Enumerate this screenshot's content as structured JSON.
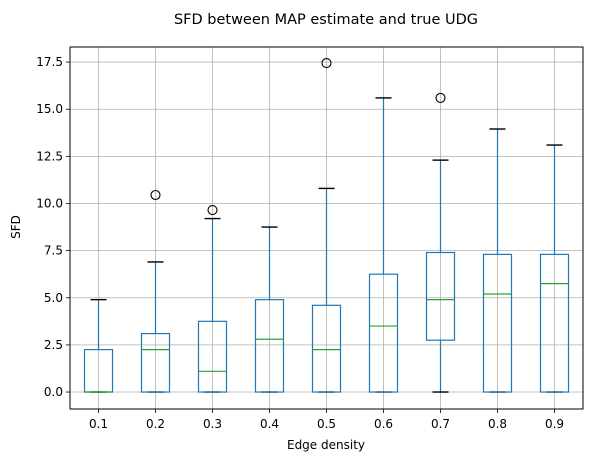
{
  "chart_data": {
    "type": "box",
    "title": "SFD between MAP estimate and true UDG",
    "xlabel": "Edge density",
    "ylabel": "SFD",
    "ylim": [
      -0.9,
      18.3
    ],
    "yticks": [
      0.0,
      2.5,
      5.0,
      7.5,
      10.0,
      12.5,
      15.0,
      17.5
    ],
    "ytick_labels": [
      "0.0",
      "2.5",
      "5.0",
      "7.5",
      "10.0",
      "12.5",
      "15.0",
      "17.5"
    ],
    "categories": [
      "0.1",
      "0.2",
      "0.3",
      "0.4",
      "0.5",
      "0.6",
      "0.7",
      "0.8",
      "0.9"
    ],
    "grid": true,
    "boxes": [
      {
        "category": "0.1",
        "whisker_low": 0.0,
        "q1": 0.0,
        "median": 0.0,
        "q3": 2.25,
        "whisker_high": 4.9,
        "outliers": []
      },
      {
        "category": "0.2",
        "whisker_low": 0.0,
        "q1": 0.0,
        "median": 2.25,
        "q3": 3.1,
        "whisker_high": 6.9,
        "outliers": [
          10.45
        ]
      },
      {
        "category": "0.3",
        "whisker_low": 0.0,
        "q1": 0.0,
        "median": 1.1,
        "q3": 3.75,
        "whisker_high": 9.2,
        "outliers": [
          9.65
        ]
      },
      {
        "category": "0.4",
        "whisker_low": 0.0,
        "q1": 0.0,
        "median": 2.8,
        "q3": 4.9,
        "whisker_high": 8.75,
        "outliers": []
      },
      {
        "category": "0.5",
        "whisker_low": 0.0,
        "q1": 0.0,
        "median": 2.25,
        "q3": 4.6,
        "whisker_high": 10.8,
        "outliers": [
          17.45
        ]
      },
      {
        "category": "0.6",
        "whisker_low": 0.0,
        "q1": 0.0,
        "median": 3.5,
        "q3": 6.25,
        "whisker_high": 15.6,
        "outliers": []
      },
      {
        "category": "0.7",
        "whisker_low": 0.0,
        "q1": 2.75,
        "median": 4.9,
        "q3": 7.4,
        "whisker_high": 12.3,
        "outliers": [
          15.6
        ]
      },
      {
        "category": "0.8",
        "whisker_low": 0.0,
        "q1": 0.0,
        "median": 5.2,
        "q3": 7.3,
        "whisker_high": 13.95,
        "outliers": []
      },
      {
        "category": "0.9",
        "whisker_low": 0.0,
        "q1": 0.0,
        "median": 5.75,
        "q3": 7.3,
        "whisker_high": 13.1,
        "outliers": []
      }
    ],
    "colors": {
      "box": "#1f77b4",
      "median": "#2ca02c",
      "cap": "#000000",
      "outlier": "#000000",
      "grid": "#b0b0b0"
    }
  }
}
